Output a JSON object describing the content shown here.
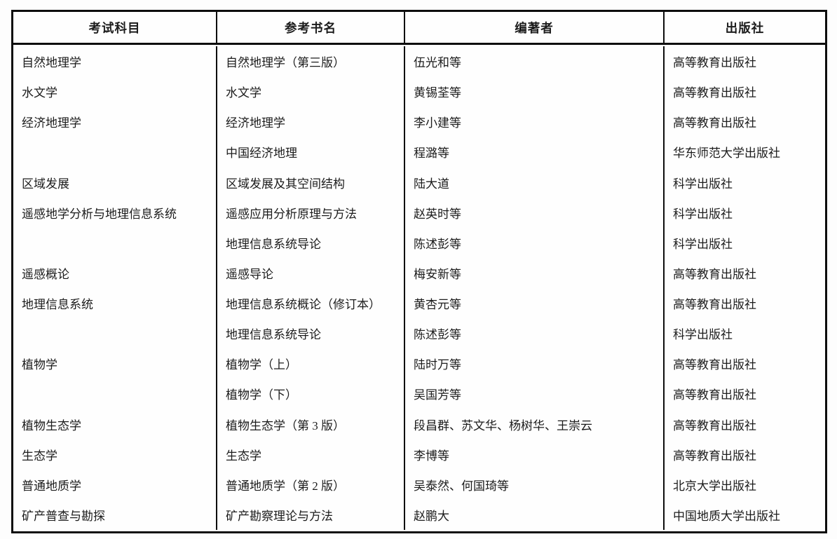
{
  "table": {
    "headers": [
      "考试科目",
      "参考书名",
      "编著者",
      "出版社"
    ],
    "rows": [
      {
        "subject": "自然地理学",
        "book": "自然地理学（第三版）",
        "author": "伍光和等",
        "publisher": "高等教育出版社"
      },
      {
        "subject": "水文学",
        "book": "水文学",
        "author": "黄锡荃等",
        "publisher": "高等教育出版社"
      },
      {
        "subject": "经济地理学",
        "book": "经济地理学",
        "author": "李小建等",
        "publisher": "高等教育出版社"
      },
      {
        "subject": "",
        "book": "中国经济地理",
        "author": "程潞等",
        "publisher": "华东师范大学出版社"
      },
      {
        "subject": "区域发展",
        "book": "区域发展及其空间结构",
        "author": "陆大道",
        "publisher": "科学出版社"
      },
      {
        "subject": "遥感地学分析与地理信息系统",
        "book": "遥感应用分析原理与方法",
        "author": "赵英时等",
        "publisher": "科学出版社"
      },
      {
        "subject": "",
        "book": "地理信息系统导论",
        "author": "陈述彭等",
        "publisher": "科学出版社"
      },
      {
        "subject": "遥感概论",
        "book": "遥感导论",
        "author": "梅安新等",
        "publisher": "高等教育出版社"
      },
      {
        "subject": "地理信息系统",
        "book": "地理信息系统概论（修订本）",
        "author": "黄杏元等",
        "publisher": "高等教育出版社"
      },
      {
        "subject": "",
        "book": "地理信息系统导论",
        "author": "陈述彭等",
        "publisher": "科学出版社"
      },
      {
        "subject": "植物学",
        "book": "植物学（上）",
        "author": "陆时万等",
        "publisher": "高等教育出版社"
      },
      {
        "subject": "",
        "book": "植物学（下）",
        "author": "吴国芳等",
        "publisher": "高等教育出版社"
      },
      {
        "subject": "植物生态学",
        "book": "植物生态学（第 3 版）",
        "author": "段昌群、苏文华、杨树华、王崇云",
        "publisher": "高等教育出版社"
      },
      {
        "subject": "生态学",
        "book": "生态学",
        "author": "李博等",
        "publisher": "高等教育出版社"
      },
      {
        "subject": "普通地质学",
        "book": "普通地质学（第 2 版）",
        "author": "吴泰然、何国琦等",
        "publisher": "北京大学出版社"
      },
      {
        "subject": "矿产普查与勘探",
        "book": "矿产勘察理论与方法",
        "author": "赵鹏大",
        "publisher": "中国地质大学出版社"
      }
    ]
  }
}
